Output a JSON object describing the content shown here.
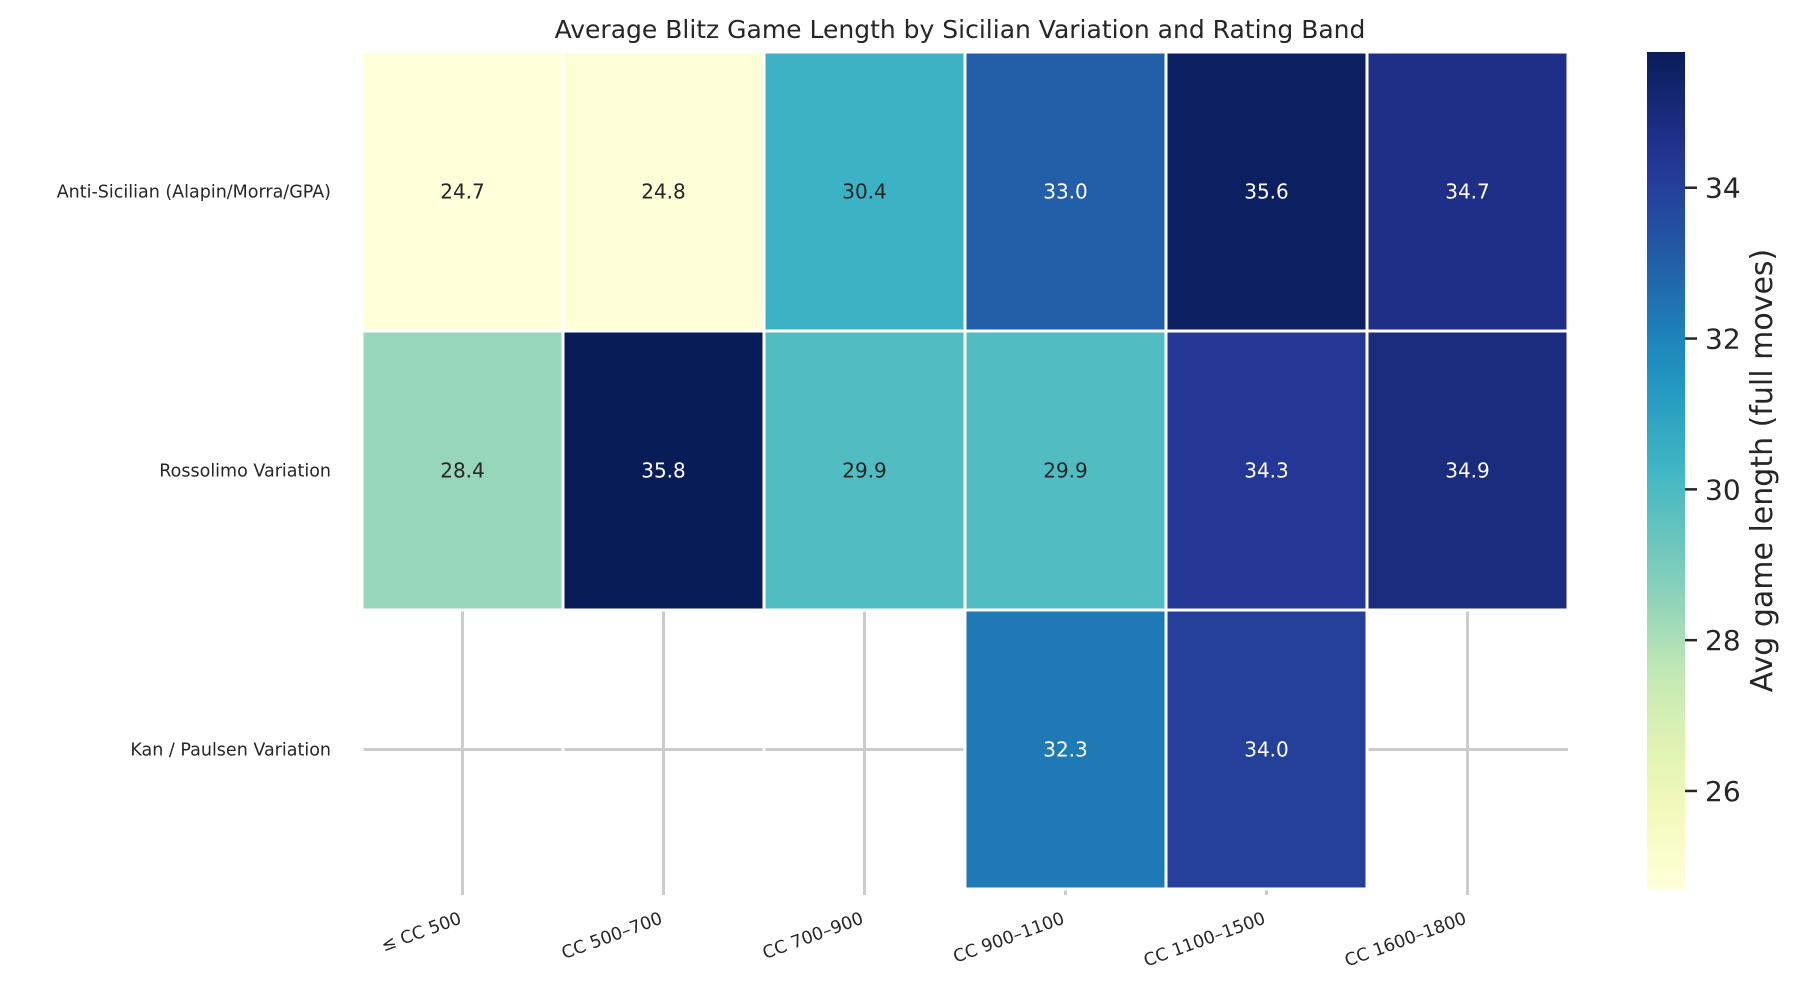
{
  "chart_data": {
    "type": "heatmap",
    "title": "Average Blitz Game Length by Sicilian Variation and Rating Band",
    "columns": [
      "≤ CC 500",
      "CC 500–700",
      "CC 700–900",
      "CC 900–1100",
      "CC 1100–1500",
      "CC 1600–1800"
    ],
    "rows": [
      "Anti-Sicilian (Alapin/Morra/GPA)",
      "Rossolimo Variation",
      "Kan / Paulsen Variation"
    ],
    "values": [
      [
        24.7,
        24.8,
        30.4,
        33.0,
        35.6,
        34.7
      ],
      [
        28.4,
        35.8,
        29.9,
        29.9,
        34.3,
        34.9
      ],
      [
        null,
        null,
        null,
        32.3,
        34.0,
        null
      ]
    ],
    "value_format": "0.0",
    "colormap": "YlGnBu",
    "colorbar": {
      "label": "Avg game length (full moves)",
      "vmin": 24.7,
      "vmax": 35.8,
      "ticks": [
        26,
        28,
        30,
        32,
        34
      ]
    },
    "grid": true,
    "missing_cells": "blank"
  }
}
